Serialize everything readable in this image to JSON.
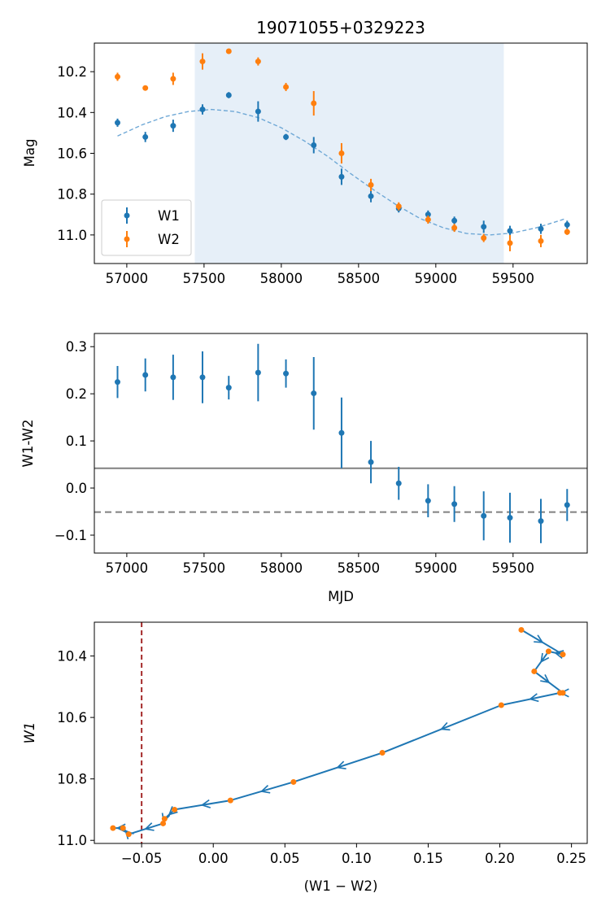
{
  "chart_data": [
    {
      "type": "scatter",
      "title": "19071055+0329223",
      "xlabel": "",
      "ylabel": "Mag",
      "xlim": [
        56790,
        59980
      ],
      "ylim": [
        10.06,
        11.14
      ],
      "y_inverted": true,
      "xticks": [
        "57000",
        "57500",
        "58000",
        "58500",
        "59000",
        "59500"
      ],
      "yticks": [
        "10.2",
        "10.4",
        "10.6",
        "10.8",
        "11.0"
      ],
      "shaded_span": [
        57440,
        59440
      ],
      "legend": {
        "position": "lower-left",
        "entries": [
          "W1",
          "W2"
        ]
      },
      "colors": {
        "W1": "#1f77b4",
        "W2": "#ff7f0e",
        "fit": "#6fa8d6",
        "span": "#e6eff8"
      },
      "series": [
        {
          "name": "W1",
          "x": [
            56940,
            57120,
            57300,
            57490,
            57660,
            57850,
            58030,
            58210,
            58390,
            58580,
            58760,
            58950,
            59120,
            59310,
            59480,
            59680,
            59850
          ],
          "y": [
            10.45,
            10.52,
            10.465,
            10.385,
            10.315,
            10.395,
            10.52,
            10.56,
            10.715,
            10.81,
            10.87,
            10.9,
            10.93,
            10.96,
            10.98,
            10.97,
            10.95
          ],
          "err": [
            0.02,
            0.025,
            0.03,
            0.025,
            0.015,
            0.05,
            0.015,
            0.04,
            0.04,
            0.03,
            0.02,
            0.02,
            0.02,
            0.03,
            0.025,
            0.025,
            0.02
          ]
        },
        {
          "name": "W2",
          "x": [
            56940,
            57120,
            57300,
            57490,
            57660,
            57850,
            58030,
            58210,
            58390,
            58580,
            58760,
            58950,
            59120,
            59310,
            59480,
            59680,
            59850
          ],
          "y": [
            10.225,
            10.28,
            10.235,
            10.15,
            10.1,
            10.15,
            10.275,
            10.355,
            10.6,
            10.755,
            10.86,
            10.925,
            10.965,
            11.015,
            11.04,
            11.03,
            10.985
          ],
          "err": [
            0.02,
            0.01,
            0.03,
            0.04,
            0.01,
            0.02,
            0.02,
            0.06,
            0.05,
            0.03,
            0.02,
            0.02,
            0.02,
            0.02,
            0.04,
            0.03,
            0.015
          ]
        },
        {
          "name": "fit",
          "style": "dashed",
          "x": [
            56940,
            57100,
            57250,
            57400,
            57550,
            57700,
            57850,
            58000,
            58150,
            58300,
            58450,
            58600,
            58750,
            58900,
            59050,
            59200,
            59350,
            59500,
            59650,
            59800,
            59840
          ],
          "y": [
            10.515,
            10.46,
            10.42,
            10.395,
            10.385,
            10.395,
            10.425,
            10.475,
            10.54,
            10.615,
            10.7,
            10.78,
            10.855,
            10.92,
            10.965,
            10.993,
            11.0,
            10.99,
            10.965,
            10.93,
            10.92
          ]
        }
      ]
    },
    {
      "type": "scatter",
      "title": "",
      "xlabel": "MJD",
      "ylabel": "W1-W2",
      "xlim": [
        56790,
        59980
      ],
      "ylim": [
        -0.138,
        0.328
      ],
      "xticks": [
        "57000",
        "57500",
        "58000",
        "58500",
        "59000",
        "59500"
      ],
      "yticks": [
        "0.3",
        "0.2",
        "0.1",
        "0.0",
        "−0.1"
      ],
      "hlines": [
        {
          "y": 0.042,
          "style": "solid",
          "color": "#808080"
        },
        {
          "y": -0.051,
          "style": "dashed",
          "color": "#808080"
        }
      ],
      "colors": {
        "points": "#1f77b4"
      },
      "series": [
        {
          "name": "",
          "x": [
            56940,
            57120,
            57300,
            57490,
            57660,
            57850,
            58030,
            58210,
            58390,
            58580,
            58760,
            58950,
            59120,
            59310,
            59480,
            59680,
            59850
          ],
          "y": [
            0.225,
            0.24,
            0.235,
            0.235,
            0.213,
            0.245,
            0.243,
            0.201,
            0.117,
            0.055,
            0.01,
            -0.027,
            -0.034,
            -0.059,
            -0.063,
            -0.07,
            -0.036
          ],
          "err": [
            0.034,
            0.035,
            0.048,
            0.055,
            0.025,
            0.061,
            0.03,
            0.077,
            0.075,
            0.045,
            0.035,
            0.035,
            0.038,
            0.052,
            0.053,
            0.047,
            0.034
          ]
        }
      ]
    },
    {
      "type": "line",
      "title": "",
      "xlabel": "(W1 − W2)",
      "ylabel": "W1",
      "xlim": [
        -0.083,
        0.261
      ],
      "ylim": [
        10.29,
        11.01
      ],
      "y_inverted": true,
      "xticks": [
        "−0.05",
        "0.00",
        "0.05",
        "0.10",
        "0.15",
        "0.20",
        "0.25"
      ],
      "yticks": [
        "10.4",
        "10.6",
        "10.8",
        "11.0"
      ],
      "vline": {
        "x": -0.05,
        "style": "dashed",
        "color": "#a52a2a"
      },
      "colors": {
        "path": "#1f77b4",
        "points": "#ff7f0e"
      },
      "series": [
        {
          "name": "",
          "x": [
            0.215,
            0.244,
            0.234,
            0.224,
            0.244,
            0.242,
            0.201,
            0.118,
            0.056,
            0.012,
            -0.027,
            -0.034,
            -0.035,
            -0.059,
            -0.063,
            -0.07
          ],
          "y": [
            10.315,
            10.395,
            10.385,
            10.45,
            10.52,
            10.52,
            10.56,
            10.715,
            10.81,
            10.87,
            10.9,
            10.93,
            10.945,
            10.98,
            10.96,
            10.96
          ]
        }
      ]
    }
  ]
}
